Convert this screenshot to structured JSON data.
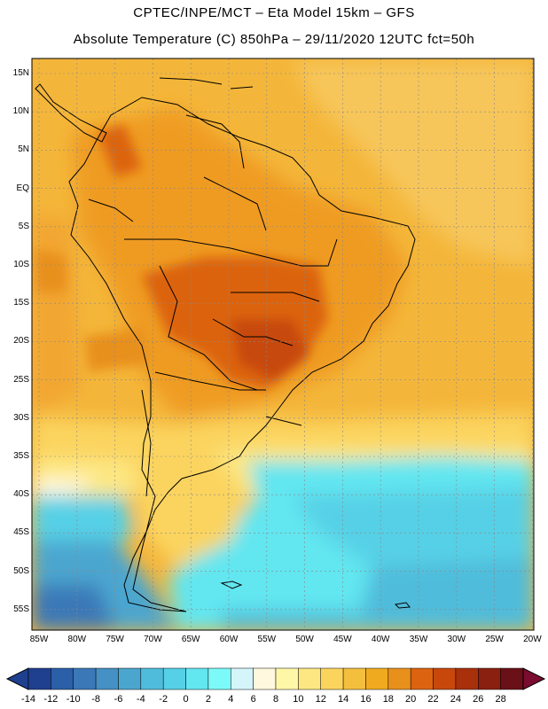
{
  "header": {
    "line1": "CPTEC/INPE/MCT –  Eta Model 15km – GFS",
    "line2": "Absolute Temperature (C) 850hPa – 29/11/2020 12UTC fct=50h"
  },
  "map": {
    "lat_labels": [
      "15N",
      "10N",
      "5N",
      "EQ",
      "5S",
      "10S",
      "15S",
      "20S",
      "25S",
      "30S",
      "35S",
      "40S",
      "45S",
      "50S",
      "55S"
    ],
    "lon_labels": [
      "85W",
      "80W",
      "75W",
      "70W",
      "65W",
      "60W",
      "55W",
      "50W",
      "45W",
      "40W",
      "35W",
      "30W",
      "25W",
      "20W"
    ]
  },
  "colorbar": {
    "labels": [
      "-14",
      "-12",
      "-10",
      "-8",
      "-6",
      "-4",
      "-2",
      "0",
      "2",
      "4",
      "6",
      "8",
      "10",
      "12",
      "14",
      "16",
      "18",
      "20",
      "22",
      "24",
      "26",
      "28"
    ],
    "colors": [
      "#1f3f8f",
      "#2b5fa8",
      "#3a78b8",
      "#4590c4",
      "#4ba6cf",
      "#4fbcdb",
      "#56d0e6",
      "#62e6f0",
      "#7cfafa",
      "#d4f6fb",
      "#fff8de",
      "#fff7a8",
      "#fde782",
      "#fbd45e",
      "#f5bf3e",
      "#f0aa20",
      "#e8901c",
      "#dc6410",
      "#c8480c",
      "#a8300a",
      "#8a2010",
      "#6a1018"
    ]
  }
}
